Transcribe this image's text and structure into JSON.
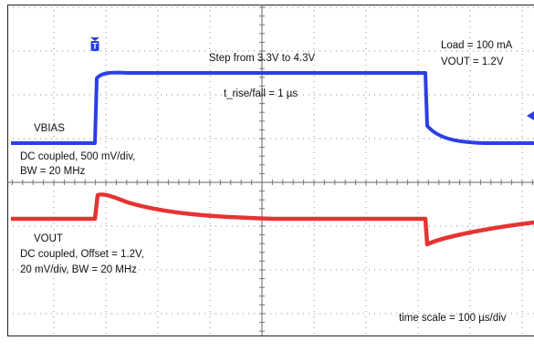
{
  "annotations": {
    "step": "Step from 3.3V to 4.3V",
    "rise_fall": "t_rise/fall = 1 µs",
    "load": "Load = 100 mA",
    "vout_setting": "VOUT = 1.2V",
    "ch1_name": "VBIAS",
    "ch1_coupling": "DC coupled, 500 mV/div,",
    "ch1_bw": "BW = 20 MHz",
    "ch2_name": "VOUT",
    "ch2_coupling": "DC coupled, Offset = 1.2V,",
    "ch2_scale": "20 mV/div, BW = 20 MHz",
    "time_scale": "time scale = 100 µs/div"
  }
}
